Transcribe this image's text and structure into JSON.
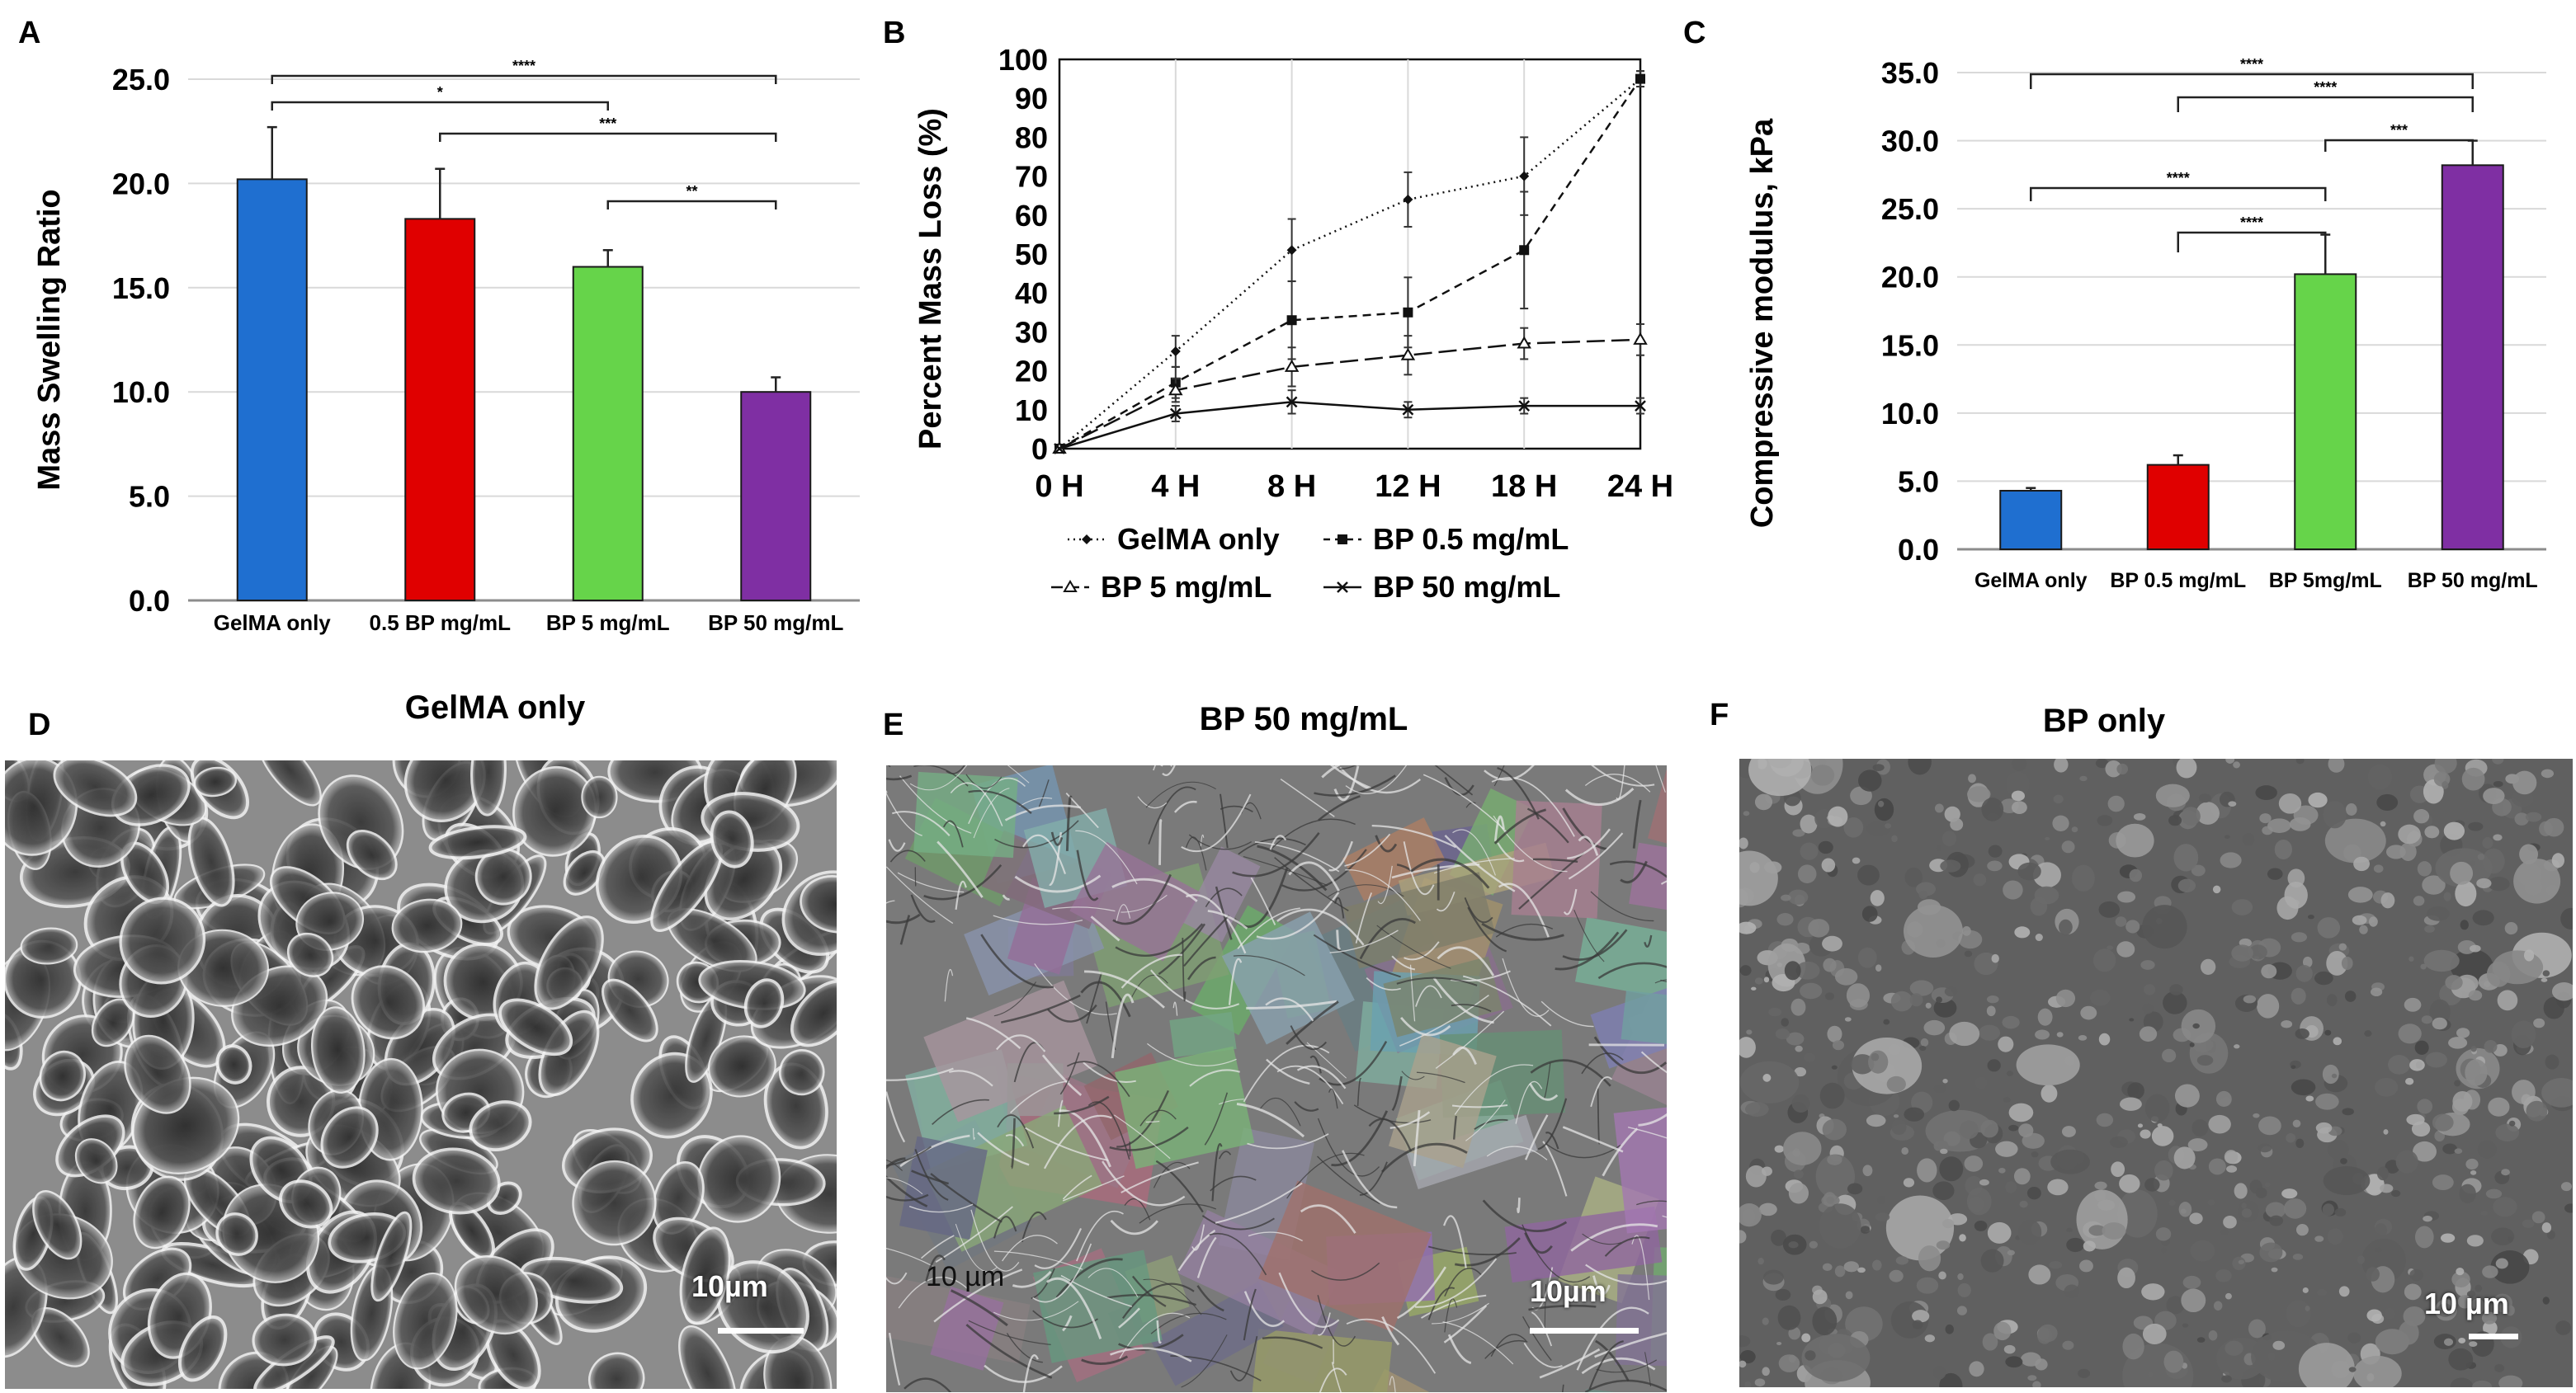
{
  "panels": {
    "a": {
      "letter": "A"
    },
    "b": {
      "letter": "B"
    },
    "c": {
      "letter": "C"
    },
    "d": {
      "letter": "D",
      "title": "GelMA only",
      "scale": "10µm"
    },
    "e": {
      "letter": "E",
      "title": "BP 50 mg/mL",
      "scale": "10µm",
      "overlay": "10 µm"
    },
    "f": {
      "letter": "F",
      "title": "BP only",
      "scale": "10 µm"
    }
  },
  "chart_data": [
    {
      "id": "A",
      "type": "bar",
      "ylabel": "Mass Swelling Ratio",
      "xlabel": "",
      "ylim": [
        0,
        25
      ],
      "yticks": [
        "0.0",
        "5.0",
        "10.0",
        "15.0",
        "20.0",
        "25.0"
      ],
      "categories": [
        "GelMA only",
        "0.5 BP mg/mL",
        "BP 5 mg/mL",
        "BP 50 mg/mL"
      ],
      "values": [
        20.2,
        18.3,
        16.0,
        10.0
      ],
      "errors": [
        2.5,
        2.4,
        0.8,
        0.7
      ],
      "colors": [
        "#1f6fd0",
        "#e00000",
        "#66d44a",
        "#7f2fa3"
      ],
      "grid": true,
      "significance": [
        {
          "from": 0,
          "to": 3,
          "label": "****"
        },
        {
          "from": 0,
          "to": 2,
          "label": "*"
        },
        {
          "from": 1,
          "to": 3,
          "label": "***"
        },
        {
          "from": 2,
          "to": 3,
          "label": "**"
        }
      ]
    },
    {
      "id": "B",
      "type": "line",
      "ylabel": "Percent Mass Loss (%)",
      "xlabel": "",
      "ylim": [
        0,
        100
      ],
      "yticks": [
        "0",
        "10",
        "20",
        "30",
        "40",
        "50",
        "60",
        "70",
        "80",
        "90",
        "100"
      ],
      "x": [
        "0 H",
        "4 H",
        "8 H",
        "12 H",
        "18 H",
        "24 H"
      ],
      "legend_position": "bottom",
      "series": [
        {
          "name": "GelMA only",
          "values": [
            0,
            25,
            51,
            64,
            70,
            95
          ],
          "errors": [
            0,
            4,
            8,
            7,
            10,
            2
          ],
          "dash": "2,5",
          "marker": "diamond"
        },
        {
          "name": "BP 0.5 mg/mL",
          "values": [
            0,
            17,
            33,
            35,
            51,
            95
          ],
          "errors": [
            0,
            4,
            10,
            9,
            15,
            2
          ],
          "dash": "10,7",
          "marker": "square"
        },
        {
          "name": "BP 5 mg/mL",
          "values": [
            0,
            15,
            21,
            24,
            27,
            28
          ],
          "errors": [
            0,
            3,
            5,
            5,
            4,
            4
          ],
          "dash": "22,8",
          "marker": "triangle"
        },
        {
          "name": "BP 50 mg/mL",
          "values": [
            0,
            9,
            12,
            10,
            11,
            11
          ],
          "errors": [
            0,
            2,
            3,
            2,
            2,
            2
          ],
          "dash": "",
          "marker": "x"
        }
      ]
    },
    {
      "id": "C",
      "type": "bar",
      "ylabel": "Compressive modulus, kPa",
      "xlabel": "",
      "ylim": [
        0,
        35
      ],
      "yticks": [
        "0.0",
        "5.0",
        "10.0",
        "15.0",
        "20.0",
        "25.0",
        "30.0",
        "35.0"
      ],
      "categories": [
        "GelMA only",
        "BP 0.5 mg/mL",
        "BP 5mg/mL",
        "BP 50 mg/mL"
      ],
      "values": [
        4.3,
        6.2,
        20.2,
        28.2
      ],
      "errors": [
        0.2,
        0.7,
        2.9,
        1.8
      ],
      "colors": [
        "#1f6fd0",
        "#e00000",
        "#66d44a",
        "#7f2fa3"
      ],
      "grid": true,
      "significance": [
        {
          "from": 0,
          "to": 3,
          "label": "****"
        },
        {
          "from": 1,
          "to": 3,
          "label": "****"
        },
        {
          "from": 2,
          "to": 3,
          "label": "***"
        },
        {
          "from": 0,
          "to": 2,
          "label": "****"
        },
        {
          "from": 1,
          "to": 2,
          "label": "****"
        }
      ]
    }
  ]
}
